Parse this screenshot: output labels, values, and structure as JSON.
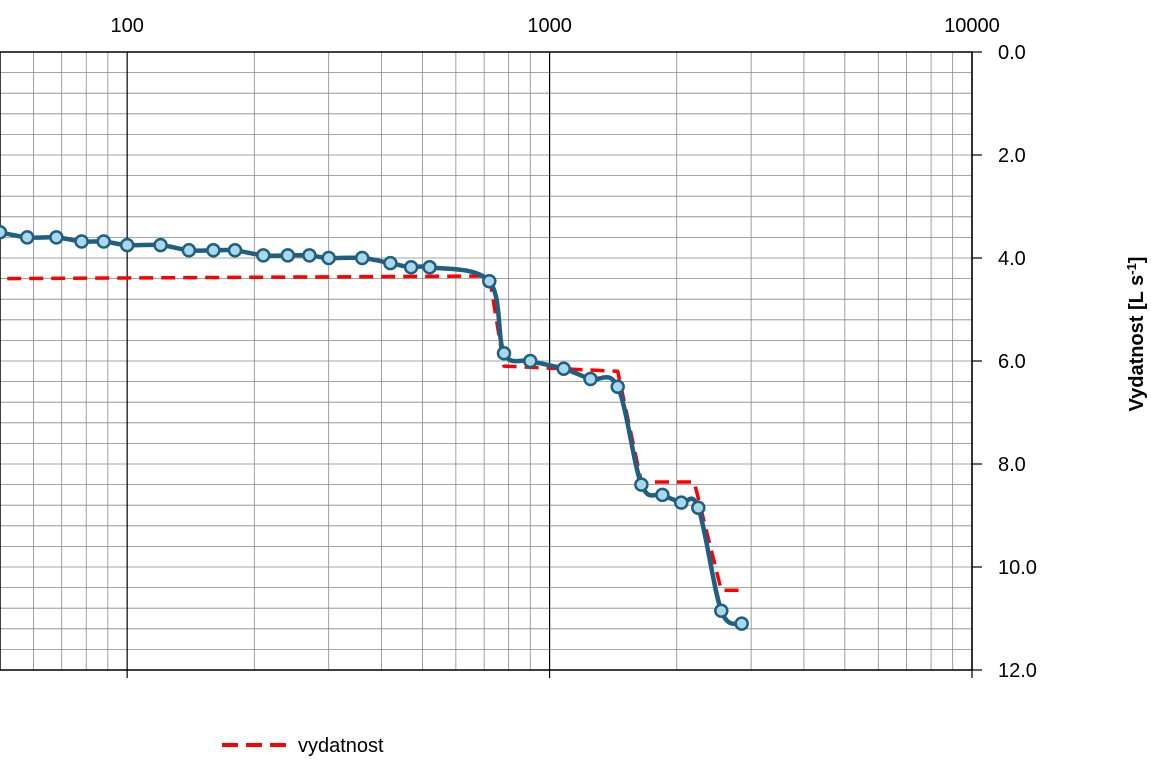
{
  "chart_data": {
    "type": "line",
    "title": "",
    "xlabel": "",
    "ylabel": "Vydatnost [L s",
    "ylabel_sup": "-1",
    "ylabel_suffix": "]",
    "x_scale": "log",
    "xlim": [
      50,
      10000
    ],
    "ylim": [
      0,
      12
    ],
    "y_inverted": true,
    "grid": true,
    "legend_position": "bottom-center",
    "x_ticks": [
      100,
      1000,
      10000
    ],
    "x_tick_labels": [
      "100",
      "1000",
      "10000"
    ],
    "y_ticks": [
      0,
      2,
      4,
      6,
      8,
      10,
      12
    ],
    "y_tick_labels": [
      "0.0",
      "2.0",
      "4.0",
      "6.0",
      "8.0",
      "10.0",
      "12.0"
    ],
    "colors": {
      "measured_line": "#1f5f7f",
      "measured_marker_fill": "#a8d8ea",
      "step_line": "#ff0000"
    },
    "series": [
      {
        "style": "solid-markers",
        "x": [
          50,
          58,
          68,
          78,
          88,
          100,
          120,
          140,
          160,
          180,
          210,
          240,
          270,
          300,
          360,
          420,
          470,
          520,
          720,
          780,
          900,
          1080,
          1250,
          1450,
          1650,
          1850,
          2050,
          2250,
          2550,
          2850
        ],
        "y": [
          3.5,
          3.6,
          3.6,
          3.68,
          3.68,
          3.75,
          3.75,
          3.85,
          3.85,
          3.85,
          3.95,
          3.95,
          3.95,
          4.0,
          4.0,
          4.1,
          4.18,
          4.18,
          4.45,
          5.85,
          6.0,
          6.15,
          6.35,
          6.5,
          8.4,
          8.6,
          8.75,
          8.85,
          10.85,
          11.1
        ]
      },
      {
        "name": "vydatnost",
        "style": "dashed",
        "x": [
          52,
          720,
          780,
          1450,
          1650,
          2200,
          2550,
          2850
        ],
        "y": [
          4.4,
          4.35,
          6.1,
          6.2,
          8.35,
          8.35,
          10.45,
          10.45
        ]
      }
    ]
  }
}
